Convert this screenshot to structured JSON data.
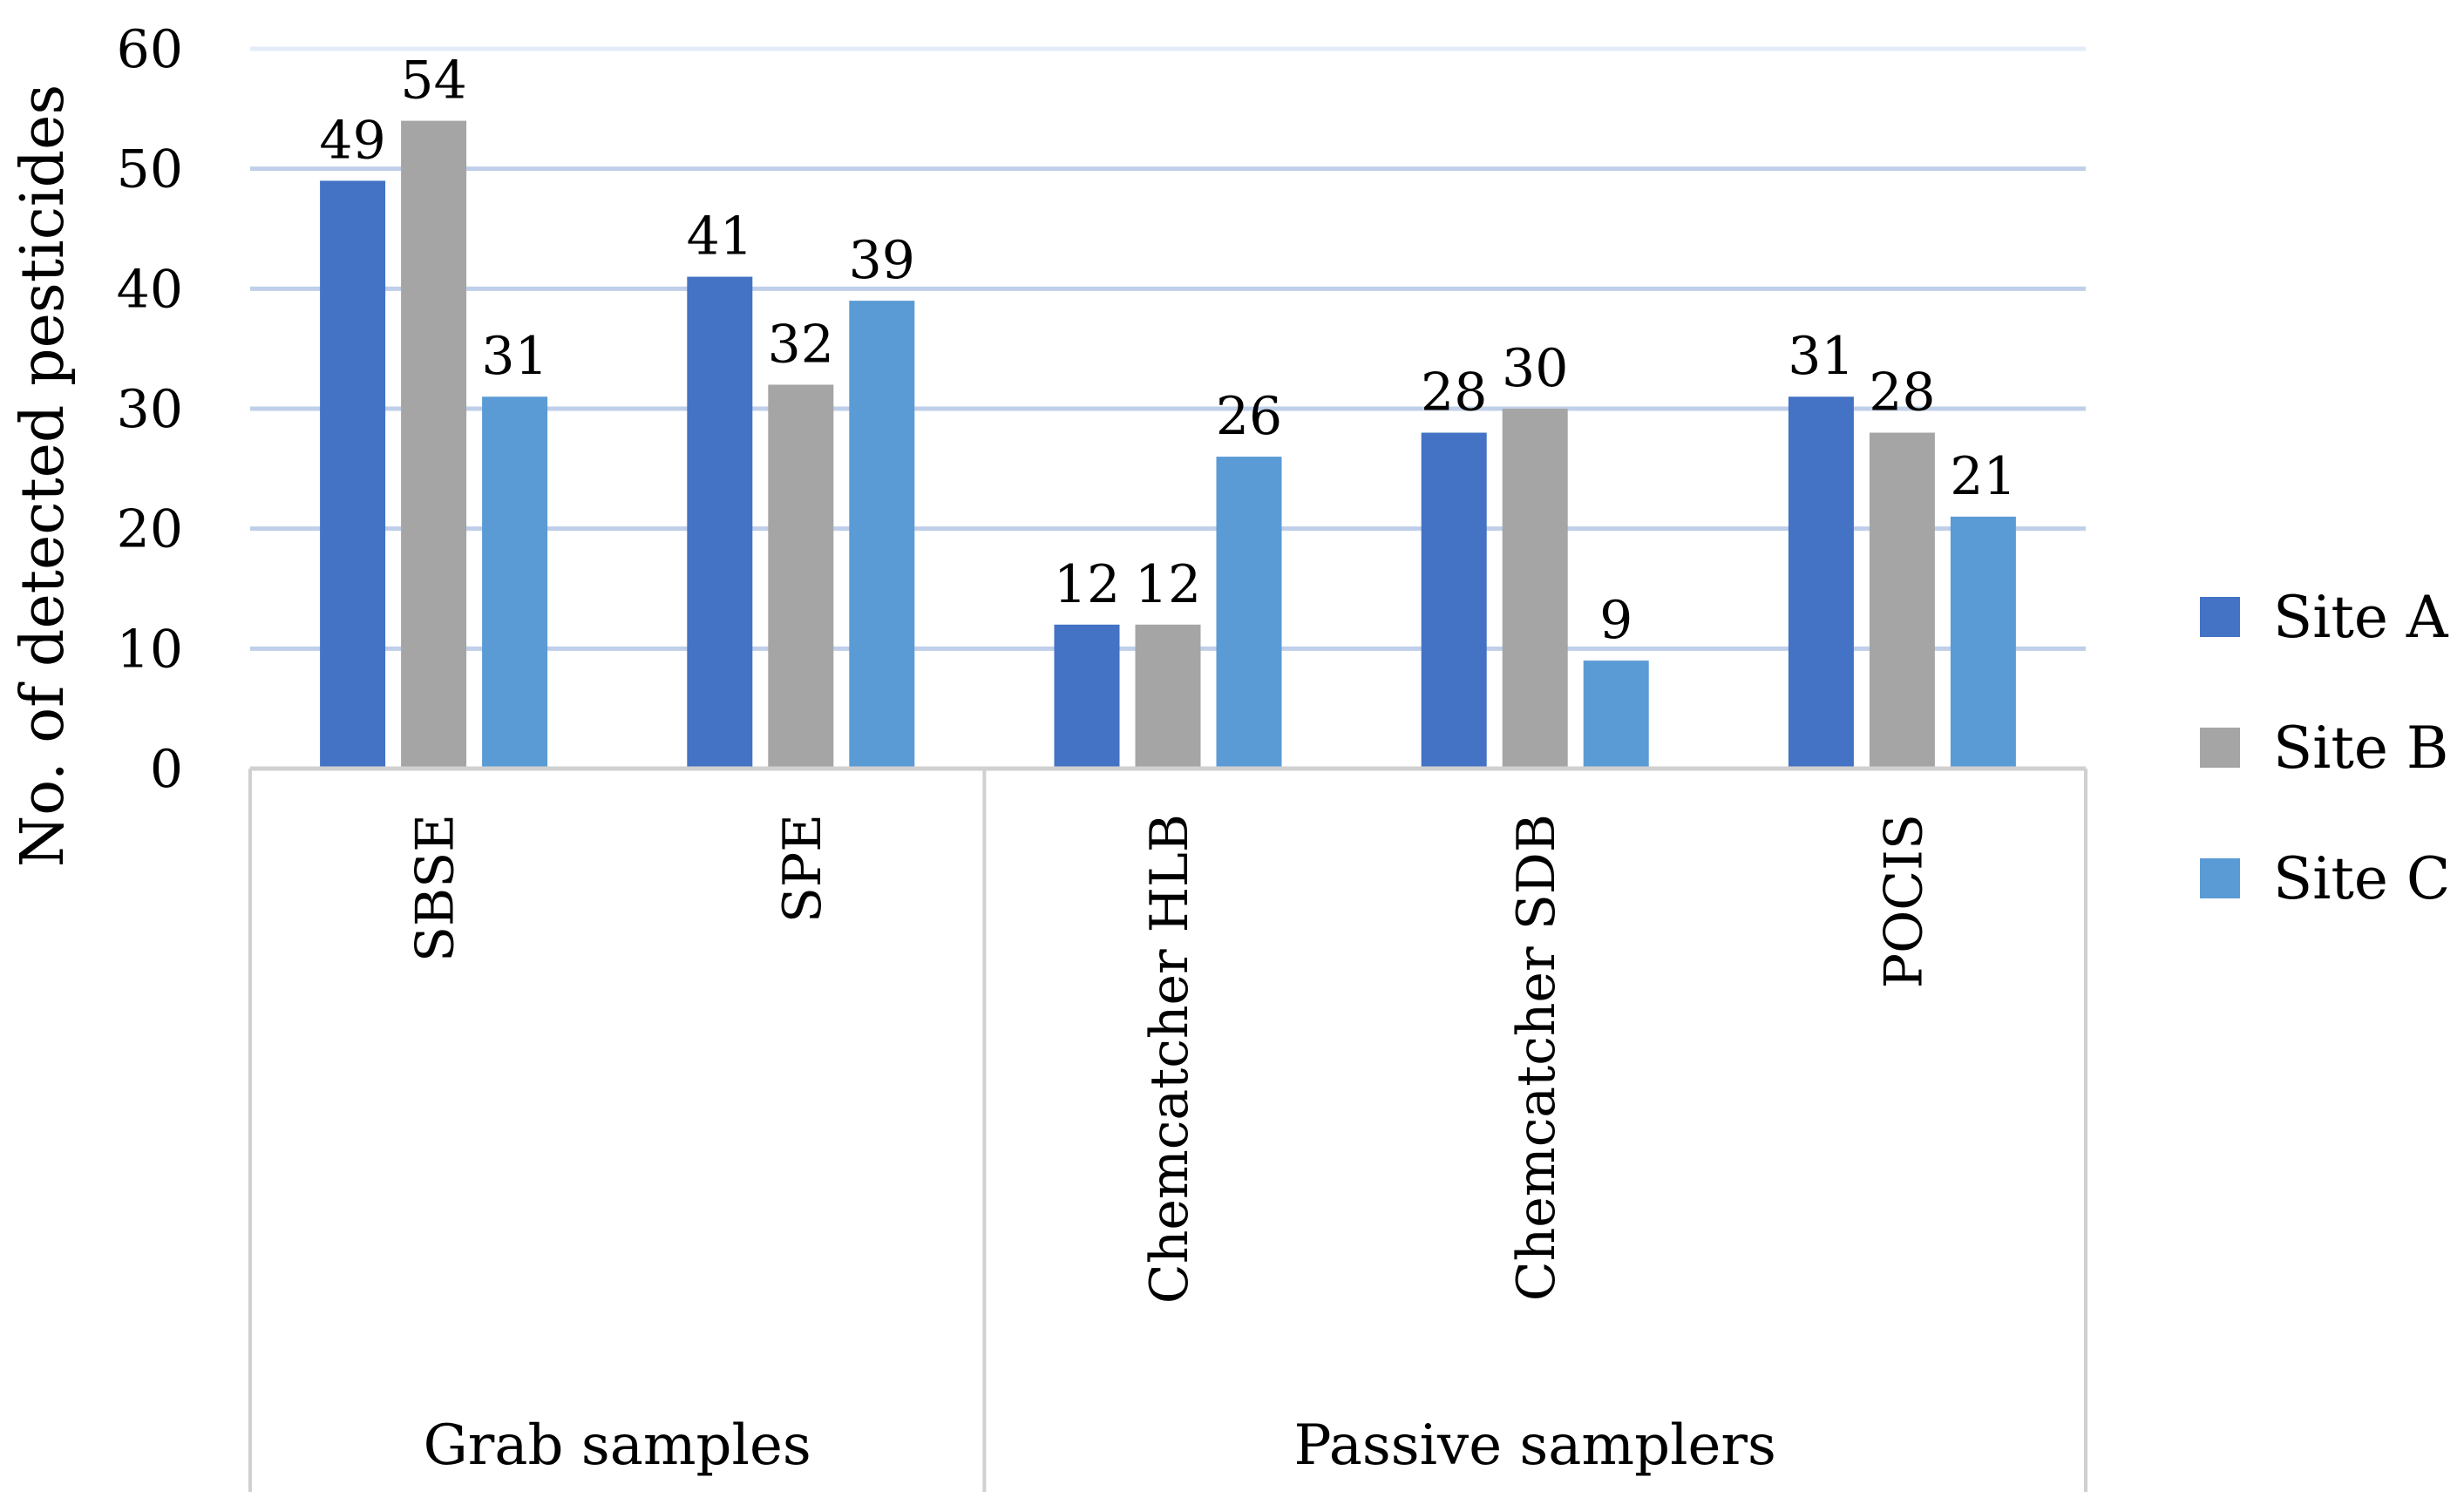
{
  "chart_data": {
    "type": "bar",
    "title": "",
    "xlabel": "",
    "ylabel": "No. of detected pesticides",
    "ylim": [
      0,
      60
    ],
    "yticks": [
      "0",
      "10",
      "20",
      "30",
      "40",
      "50",
      "60"
    ],
    "grid": true,
    "legend_position": "right",
    "groups": [
      {
        "label": "Grab samples",
        "categories": [
          "SBSE",
          "SPE"
        ]
      },
      {
        "label": "Passive samplers",
        "categories": [
          "Chemcatcher HLB",
          "Chemcatcher SDB",
          "POCIS"
        ]
      }
    ],
    "categories": [
      "SBSE",
      "SPE",
      "Chemcatcher HLB",
      "Chemcatcher SDB",
      "POCIS"
    ],
    "series": [
      {
        "name": "Site A",
        "color": "#4472C4",
        "values": [
          49,
          41,
          12,
          28,
          31
        ]
      },
      {
        "name": "Site B",
        "color": "#A5A5A5",
        "values": [
          54,
          32,
          12,
          30,
          28
        ]
      },
      {
        "name": "Site C",
        "color": "#5B9BD5",
        "values": [
          31,
          39,
          26,
          9,
          21
        ]
      }
    ]
  }
}
